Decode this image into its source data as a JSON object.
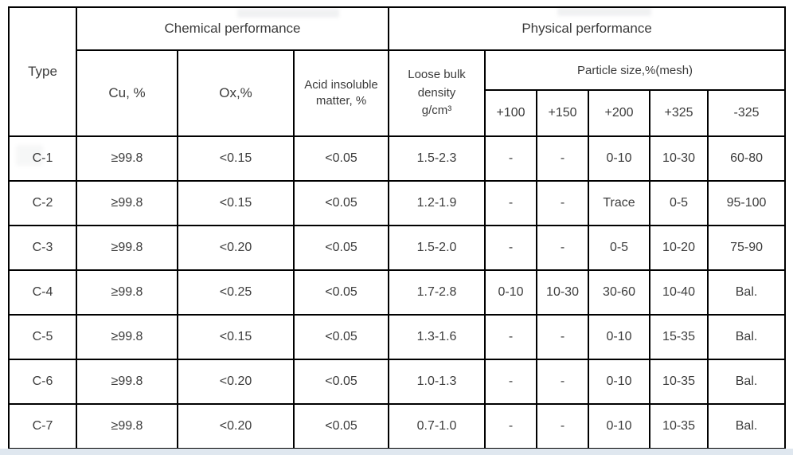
{
  "page": {
    "background_color": "#ffffff",
    "footer_strip_color": "#dfe7ef",
    "border_color": "#000000",
    "text_color": "#3c3c3c"
  },
  "table": {
    "header": {
      "type": "Type",
      "chemical": "Chemical performance",
      "physical": "Physical performance",
      "cu": "Cu, %",
      "ox": "Ox,%",
      "acid": "Acid insoluble matter, %",
      "density_lines": [
        "Loose bulk",
        "density",
        "g/cm³"
      ],
      "particle": "Particle size,%(mesh)",
      "mesh": [
        "+100",
        "+150",
        "+200",
        "+325",
        "-325"
      ]
    },
    "column_keys": [
      "type",
      "cu",
      "ox",
      "acid-insoluble",
      "loose-bulk-density",
      "mesh-plus-100",
      "mesh-plus-150",
      "mesh-plus-200",
      "mesh-plus-325",
      "mesh-minus-325"
    ],
    "rows": [
      [
        "C-1",
        "≥99.8",
        "<0.15",
        "<0.05",
        "1.5-2.3",
        "-",
        "-",
        "0-10",
        "10-30",
        "60-80"
      ],
      [
        "C-2",
        "≥99.8",
        "<0.15",
        "<0.05",
        "1.2-1.9",
        "-",
        "-",
        "Trace",
        "0-5",
        "95-100"
      ],
      [
        "C-3",
        "≥99.8",
        "<0.20",
        "<0.05",
        "1.5-2.0",
        "-",
        "-",
        "0-5",
        "10-20",
        "75-90"
      ],
      [
        "C-4",
        "≥99.8",
        "<0.25",
        "<0.05",
        "1.7-2.8",
        "0-10",
        "10-30",
        "30-60",
        "10-40",
        "Bal."
      ],
      [
        "C-5",
        "≥99.8",
        "<0.15",
        "<0.05",
        "1.3-1.6",
        "-",
        "-",
        "0-10",
        "15-35",
        "Bal."
      ],
      [
        "C-6",
        "≥99.8",
        "<0.20",
        "<0.05",
        "1.0-1.3",
        "-",
        "-",
        "0-10",
        "10-35",
        "Bal."
      ],
      [
        "C-7",
        "≥99.8",
        "<0.20",
        "<0.05",
        "0.7-1.0",
        "-",
        "-",
        "0-10",
        "10-35",
        "Bal."
      ]
    ]
  }
}
